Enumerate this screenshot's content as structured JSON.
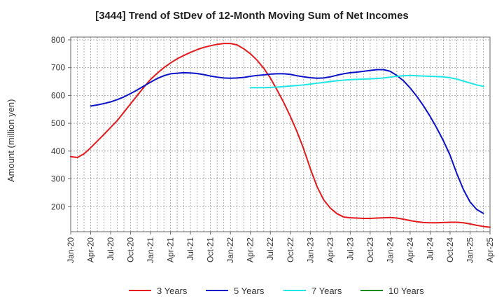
{
  "chart_data": {
    "type": "line",
    "title": "[3444]  Trend of StDev of 12-Month Moving Sum of Net Incomes",
    "ylabel": "Amount (million yen)",
    "xlabel": "",
    "ylim": [
      110,
      810
    ],
    "yticks": [
      200,
      300,
      400,
      500,
      600,
      700,
      800
    ],
    "x_start": "2020-01",
    "x_end": "2025-04",
    "x_tick_labels": [
      "Jan-20",
      "Apr-20",
      "Jul-20",
      "Oct-20",
      "Jan-21",
      "Apr-21",
      "Jul-21",
      "Oct-21",
      "Jan-22",
      "Apr-22",
      "Jul-22",
      "Oct-22",
      "Jan-23",
      "Apr-23",
      "Jul-23",
      "Oct-23",
      "Jan-24",
      "Apr-24",
      "Jul-24",
      "Oct-24",
      "Jan-25",
      "Apr-25"
    ],
    "grid": true,
    "legend_position": "bottom",
    "series": [
      {
        "name": "3 Years",
        "color": "#e41a1c",
        "points": [
          [
            "2020-01",
            380
          ],
          [
            "2020-02",
            377
          ],
          [
            "2020-03",
            390
          ],
          [
            "2020-04",
            412
          ],
          [
            "2020-05",
            436
          ],
          [
            "2020-06",
            460
          ],
          [
            "2020-07",
            485
          ],
          [
            "2020-08",
            510
          ],
          [
            "2020-09",
            540
          ],
          [
            "2020-10",
            570
          ],
          [
            "2020-11",
            600
          ],
          [
            "2020-12",
            630
          ],
          [
            "2021-01",
            658
          ],
          [
            "2021-02",
            680
          ],
          [
            "2021-03",
            700
          ],
          [
            "2021-04",
            717
          ],
          [
            "2021-05",
            732
          ],
          [
            "2021-06",
            744
          ],
          [
            "2021-07",
            755
          ],
          [
            "2021-08",
            765
          ],
          [
            "2021-09",
            773
          ],
          [
            "2021-10",
            779
          ],
          [
            "2021-11",
            784
          ],
          [
            "2021-12",
            787
          ],
          [
            "2022-01",
            787
          ],
          [
            "2022-02",
            782
          ],
          [
            "2022-03",
            768
          ],
          [
            "2022-04",
            750
          ],
          [
            "2022-05",
            727
          ],
          [
            "2022-06",
            698
          ],
          [
            "2022-07",
            663
          ],
          [
            "2022-08",
            620
          ],
          [
            "2022-09",
            575
          ],
          [
            "2022-10",
            525
          ],
          [
            "2022-11",
            470
          ],
          [
            "2022-12",
            408
          ],
          [
            "2023-01",
            337
          ],
          [
            "2023-02",
            273
          ],
          [
            "2023-03",
            225
          ],
          [
            "2023-04",
            195
          ],
          [
            "2023-05",
            175
          ],
          [
            "2023-06",
            163
          ],
          [
            "2023-07",
            160
          ],
          [
            "2023-08",
            159
          ],
          [
            "2023-09",
            158
          ],
          [
            "2023-10",
            158
          ],
          [
            "2023-11",
            159
          ],
          [
            "2023-12",
            160
          ],
          [
            "2024-01",
            161
          ],
          [
            "2024-02",
            159
          ],
          [
            "2024-03",
            155
          ],
          [
            "2024-04",
            150
          ],
          [
            "2024-05",
            146
          ],
          [
            "2024-06",
            143
          ],
          [
            "2024-07",
            142
          ],
          [
            "2024-08",
            142
          ],
          [
            "2024-09",
            143
          ],
          [
            "2024-10",
            144
          ],
          [
            "2024-11",
            144
          ],
          [
            "2024-12",
            142
          ],
          [
            "2025-01",
            138
          ],
          [
            "2025-02",
            133
          ],
          [
            "2025-03",
            129
          ],
          [
            "2025-04",
            126
          ]
        ]
      },
      {
        "name": "5 Years",
        "color": "#0a12c8",
        "points": [
          [
            "2020-04",
            562
          ],
          [
            "2020-05",
            566
          ],
          [
            "2020-06",
            571
          ],
          [
            "2020-07",
            577
          ],
          [
            "2020-08",
            585
          ],
          [
            "2020-09",
            595
          ],
          [
            "2020-10",
            607
          ],
          [
            "2020-11",
            620
          ],
          [
            "2020-12",
            634
          ],
          [
            "2021-01",
            648
          ],
          [
            "2021-02",
            661
          ],
          [
            "2021-03",
            671
          ],
          [
            "2021-04",
            678
          ],
          [
            "2021-05",
            680
          ],
          [
            "2021-06",
            682
          ],
          [
            "2021-07",
            681
          ],
          [
            "2021-08",
            679
          ],
          [
            "2021-09",
            675
          ],
          [
            "2021-10",
            670
          ],
          [
            "2021-11",
            666
          ],
          [
            "2021-12",
            663
          ],
          [
            "2022-01",
            662
          ],
          [
            "2022-02",
            663
          ],
          [
            "2022-03",
            665
          ],
          [
            "2022-04",
            669
          ],
          [
            "2022-05",
            672
          ],
          [
            "2022-06",
            674
          ],
          [
            "2022-07",
            677
          ],
          [
            "2022-08",
            678
          ],
          [
            "2022-09",
            678
          ],
          [
            "2022-10",
            676
          ],
          [
            "2022-11",
            671
          ],
          [
            "2022-12",
            667
          ],
          [
            "2023-01",
            664
          ],
          [
            "2023-02",
            662
          ],
          [
            "2023-03",
            663
          ],
          [
            "2023-04",
            667
          ],
          [
            "2023-05",
            673
          ],
          [
            "2023-06",
            678
          ],
          [
            "2023-07",
            682
          ],
          [
            "2023-08",
            684
          ],
          [
            "2023-09",
            687
          ],
          [
            "2023-10",
            690
          ],
          [
            "2023-11",
            693
          ],
          [
            "2023-12",
            693
          ],
          [
            "2024-01",
            687
          ],
          [
            "2024-02",
            672
          ],
          [
            "2024-03",
            653
          ],
          [
            "2024-04",
            627
          ],
          [
            "2024-05",
            597
          ],
          [
            "2024-06",
            563
          ],
          [
            "2024-07",
            525
          ],
          [
            "2024-08",
            483
          ],
          [
            "2024-09",
            437
          ],
          [
            "2024-10",
            385
          ],
          [
            "2024-11",
            320
          ],
          [
            "2024-12",
            262
          ],
          [
            "2025-01",
            217
          ],
          [
            "2025-02",
            190
          ],
          [
            "2025-03",
            176
          ]
        ]
      },
      {
        "name": "7 Years",
        "color": "#1ee6e6",
        "points": [
          [
            "2022-04",
            628
          ],
          [
            "2022-05",
            628
          ],
          [
            "2022-06",
            628
          ],
          [
            "2022-07",
            629
          ],
          [
            "2022-08",
            630
          ],
          [
            "2022-09",
            632
          ],
          [
            "2022-10",
            634
          ],
          [
            "2022-11",
            636
          ],
          [
            "2022-12",
            638
          ],
          [
            "2023-01",
            641
          ],
          [
            "2023-02",
            644
          ],
          [
            "2023-03",
            647
          ],
          [
            "2023-04",
            650
          ],
          [
            "2023-05",
            653
          ],
          [
            "2023-06",
            655
          ],
          [
            "2023-07",
            657
          ],
          [
            "2023-08",
            658
          ],
          [
            "2023-09",
            659
          ],
          [
            "2023-10",
            660
          ],
          [
            "2023-11",
            661
          ],
          [
            "2023-12",
            663
          ],
          [
            "2024-01",
            666
          ],
          [
            "2024-02",
            669
          ],
          [
            "2024-03",
            671
          ],
          [
            "2024-04",
            672
          ],
          [
            "2024-05",
            671
          ],
          [
            "2024-06",
            670
          ],
          [
            "2024-07",
            669
          ],
          [
            "2024-08",
            668
          ],
          [
            "2024-09",
            667
          ],
          [
            "2024-10",
            664
          ],
          [
            "2024-11",
            659
          ],
          [
            "2024-12",
            652
          ],
          [
            "2025-01",
            645
          ],
          [
            "2025-02",
            638
          ],
          [
            "2025-03",
            633
          ]
        ]
      },
      {
        "name": "10 Years",
        "color": "#1a8a1a",
        "points": []
      }
    ]
  }
}
